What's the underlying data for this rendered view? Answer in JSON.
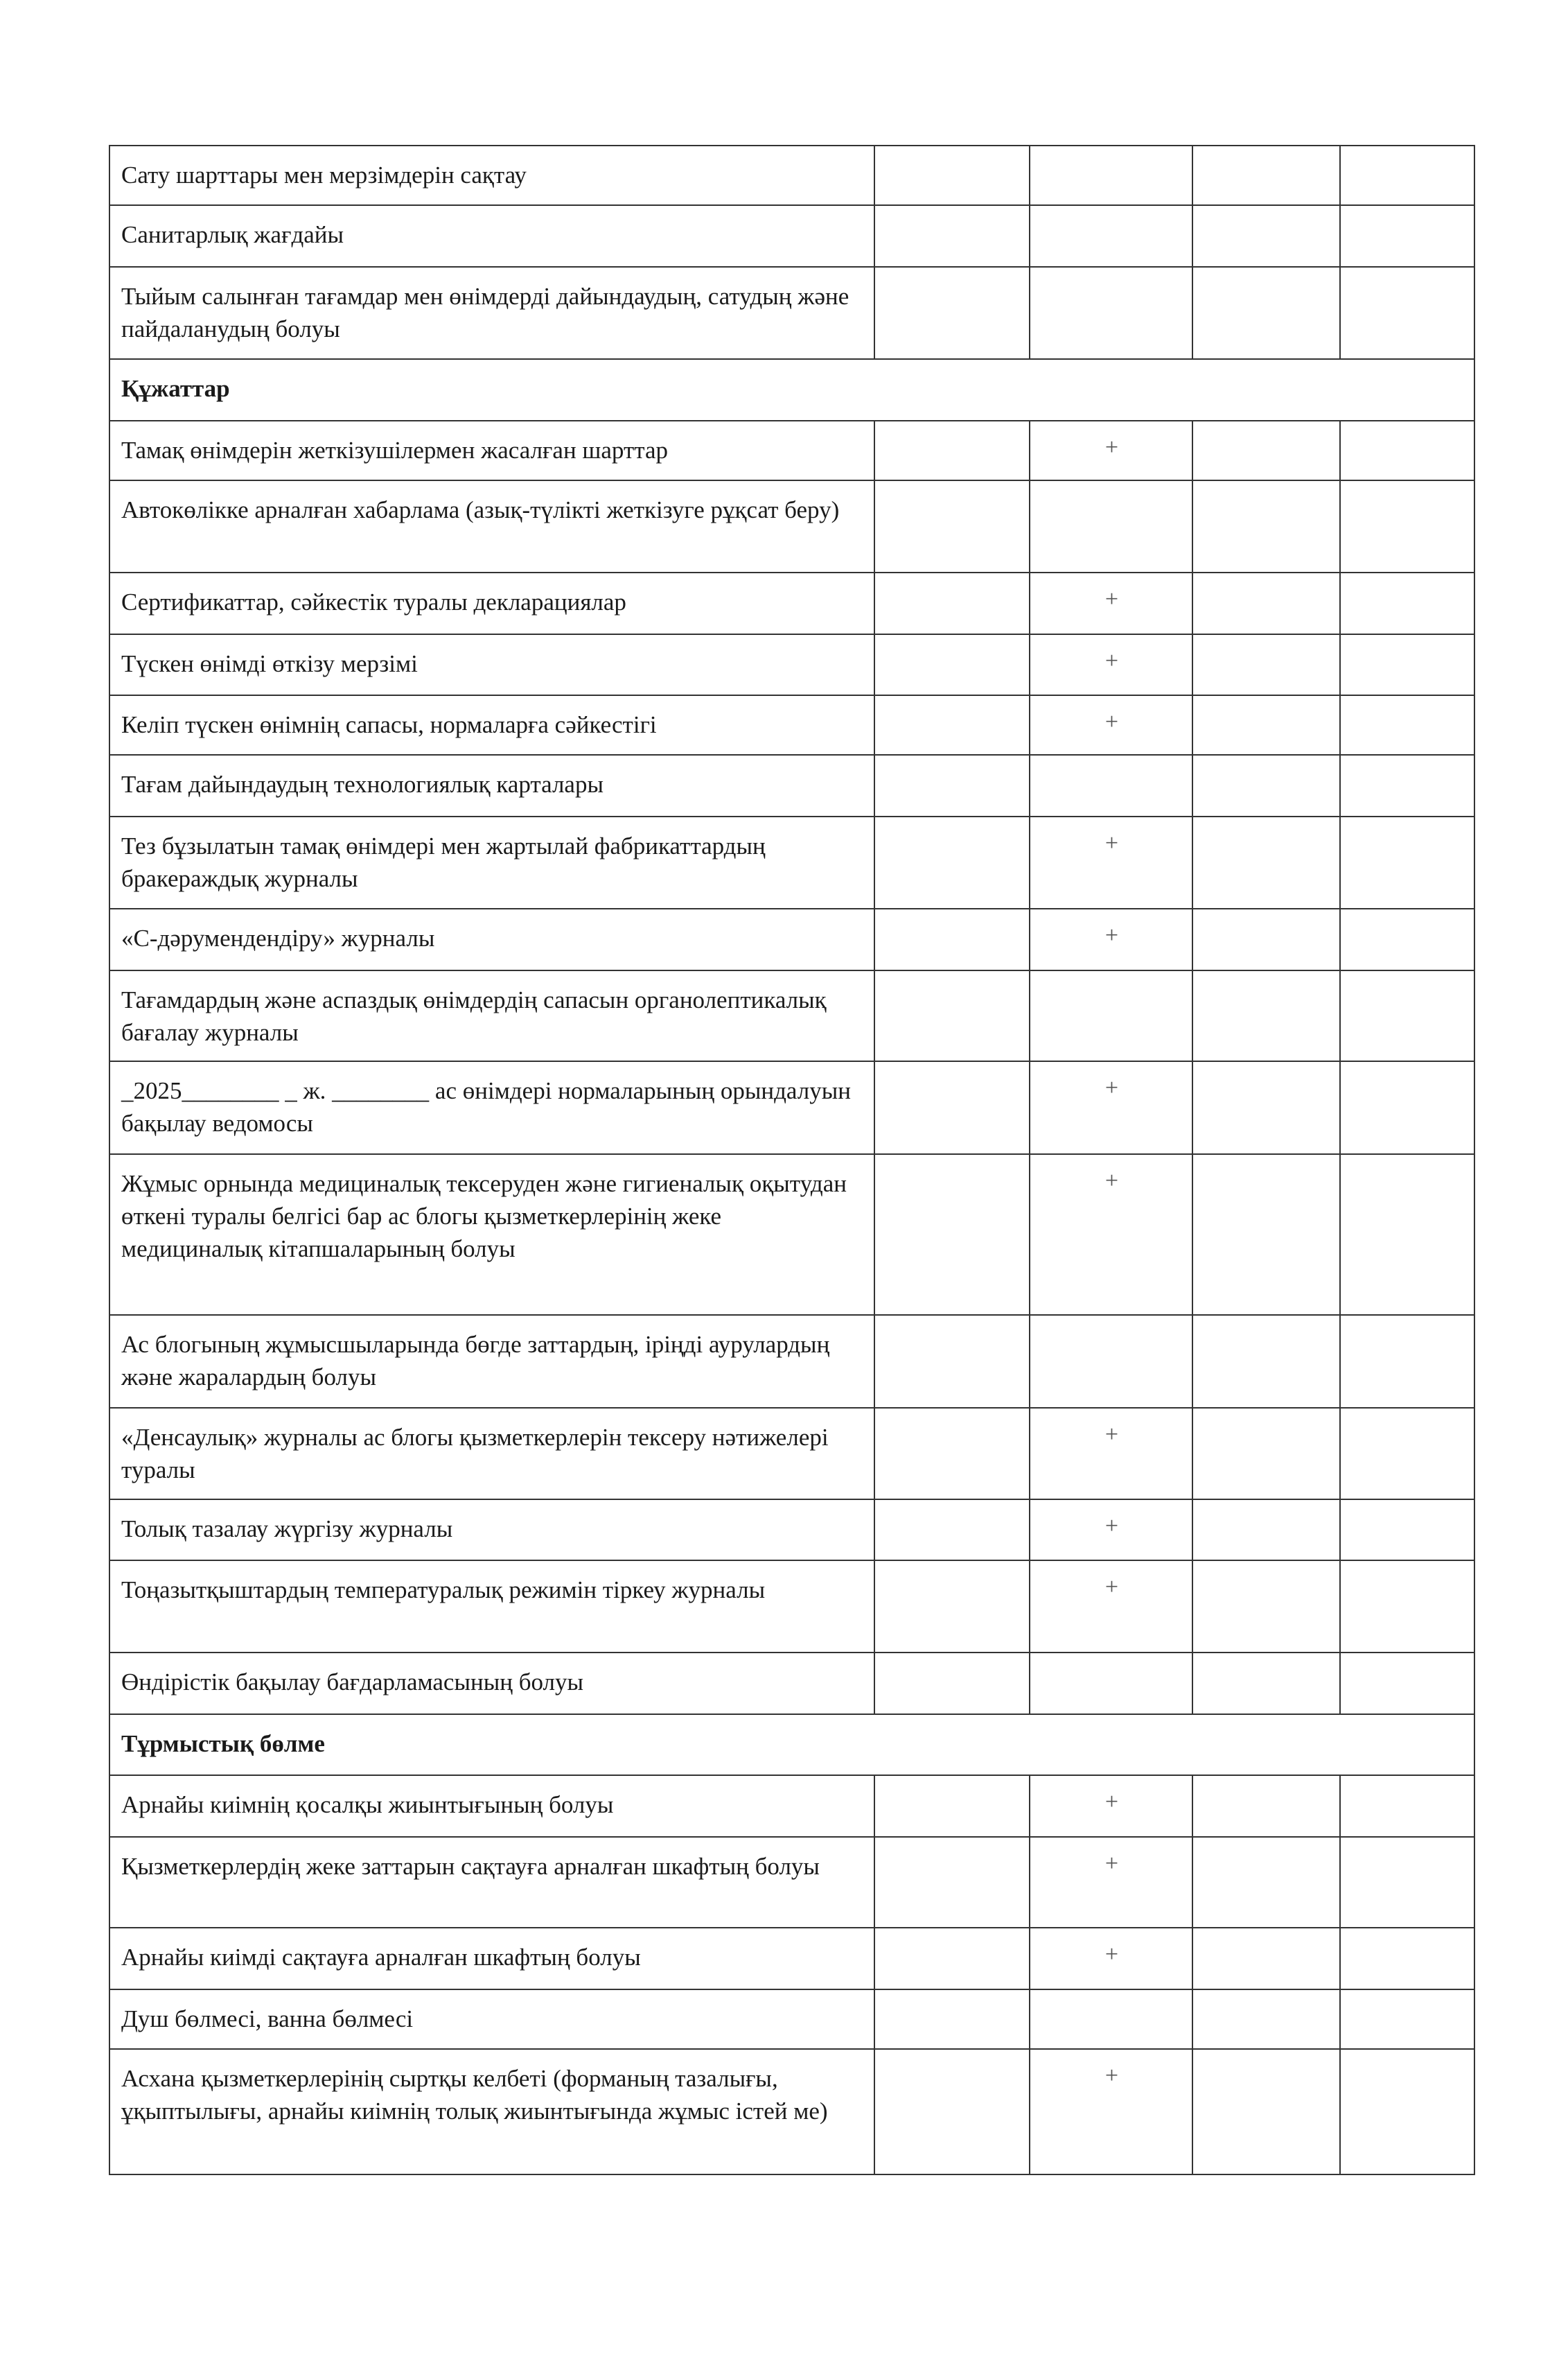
{
  "rows": [
    {
      "type": "item",
      "text": "Сату шарттары мен мерзімдерін сақтау",
      "mark": ""
    },
    {
      "type": "item",
      "text": "Санитарлық жағдайы",
      "mark": ""
    },
    {
      "type": "item",
      "text": "Тыйым салынған тағамдар мен өнімдерді дайындаудың, сатудың және пайдаланудың болуы",
      "mark": ""
    },
    {
      "type": "section",
      "text": "Құжаттар"
    },
    {
      "type": "item",
      "text": "Тамақ өнімдерін жеткізушілермен жасалған шарттар",
      "mark": "+"
    },
    {
      "type": "item",
      "text": "Автокөлікке арналған хабарлама (азық-түлікті жеткізуге рұқсат беру)",
      "mark": ""
    },
    {
      "type": "item",
      "text": "Сертификаттар, сәйкестік туралы декларациялар",
      "mark": "+"
    },
    {
      "type": "item",
      "text": "Түскен өнімді өткізу мерзімі",
      "mark": "+"
    },
    {
      "type": "item",
      "text": "Келіп түскен өнімнің сапасы, нормаларға сәйкестігі",
      "mark": "+"
    },
    {
      "type": "item",
      "text": "Тағам дайындаудың технологиялық карталары",
      "mark": ""
    },
    {
      "type": "item",
      "text": "Тез бұзылатын тамақ өнімдері мен жартылай фабрикаттардың бракераждық журналы",
      "mark": "+"
    },
    {
      "type": "item",
      "text": "«С-дәрумендендіру» журналы",
      "mark": "+"
    },
    {
      "type": "item",
      "text": "Тағамдардың және аспаздық өнімдердің сапасын органолептикалық бағалау журналы",
      "mark": ""
    },
    {
      "type": "item",
      "text": "_2025________ _ ж. ________ ас өнімдері нормаларының орындалуын бақылау ведомосы",
      "mark": "+"
    },
    {
      "type": "item",
      "text": "Жұмыс орнында медициналық тексеруден және гигиеналық оқытудан өткені туралы белгісі бар ас блогы қызметкерлерінің жеке медициналық кітапшаларының болуы",
      "mark": "+"
    },
    {
      "type": "item",
      "text": "Ас блогының жұмысшыларында бөгде заттардың, іріңді аурулардың және жаралардың болуы",
      "mark": ""
    },
    {
      "type": "item",
      "text": "«Денсаулық» журналы ас блогы қызметкерлерін тексеру нәтижелері туралы",
      "mark": "+"
    },
    {
      "type": "item",
      "text": "Толық тазалау жүргізу журналы",
      "mark": "+"
    },
    {
      "type": "item",
      "text": "Тоңазытқыштардың температуралық режимін тіркеу журналы",
      "mark": "+"
    },
    {
      "type": "item",
      "text": "Өндірістік бақылау бағдарламасының болуы",
      "mark": ""
    },
    {
      "type": "section",
      "text": "Тұрмыстық бөлме"
    },
    {
      "type": "item",
      "text": "Арнайы киімнің қосалқы жиынтығының болуы",
      "mark": "+"
    },
    {
      "type": "item",
      "text": "Қызметкерлердің жеке заттарын сақтауға арналған шкафтың болуы",
      "mark": "+"
    },
    {
      "type": "item",
      "text": "Арнайы киімді сақтауға арналған шкафтың болуы",
      "mark": "+"
    },
    {
      "type": "item",
      "text": "Душ бөлмесі, ванна бөлмесі",
      "mark": ""
    },
    {
      "type": "item",
      "text": "Асхана қызметкерлерінің сыртқы келбеті (форманың тазалығы, ұқыптылығы, арнайы киімнің толық жиынтығында жұмыс істей ме)",
      "mark": "+"
    }
  ]
}
